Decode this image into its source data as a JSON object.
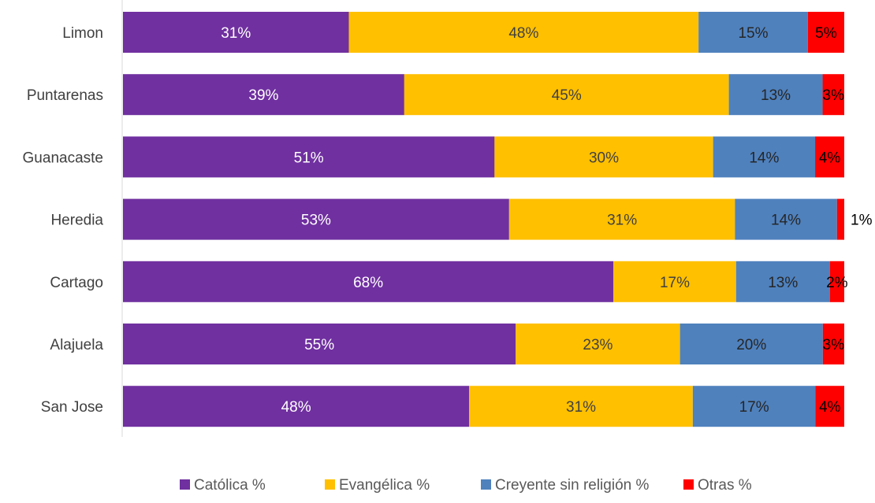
{
  "chart_data": {
    "type": "bar",
    "orientation": "horizontal",
    "stacked": "100%",
    "categories": [
      "Limon",
      "Puntarenas",
      "Guanacaste",
      "Heredia",
      "Cartago",
      "Alajuela",
      "San Jose"
    ],
    "series": [
      {
        "name": "Católica %",
        "color": "#7030A0",
        "label_color": "#ffffff",
        "values": [
          31,
          39,
          51,
          53,
          68,
          55,
          48
        ]
      },
      {
        "name": "Evangélica %",
        "color": "#FFC000",
        "label_color": "#404040",
        "values": [
          48,
          45,
          30,
          31,
          17,
          23,
          31
        ]
      },
      {
        "name": "Creyente sin religión %",
        "color": "#4F81BD",
        "label_color": "#262626",
        "values": [
          15,
          13,
          14,
          14,
          13,
          20,
          17
        ]
      },
      {
        "name": "Otras %",
        "color": "#FF0000",
        "label_color": "#000000",
        "values": [
          5,
          3,
          4,
          1,
          2,
          3,
          4
        ]
      }
    ],
    "data_labels": [
      [
        "31%",
        "39%",
        "51%",
        "53%",
        "68%",
        "55%",
        "48%"
      ],
      [
        "48%",
        "45%",
        "30%",
        "31%",
        "17%",
        "23%",
        "31%"
      ],
      [
        "15%",
        "13%",
        "14%",
        "14%",
        "13%",
        "20%",
        "17%"
      ],
      [
        "5%",
        "3%",
        "4%",
        "1%",
        "2%",
        "3%",
        "4%"
      ]
    ],
    "title": "",
    "xlabel": "",
    "ylabel": "",
    "legend": "bottom",
    "grid": false
  }
}
